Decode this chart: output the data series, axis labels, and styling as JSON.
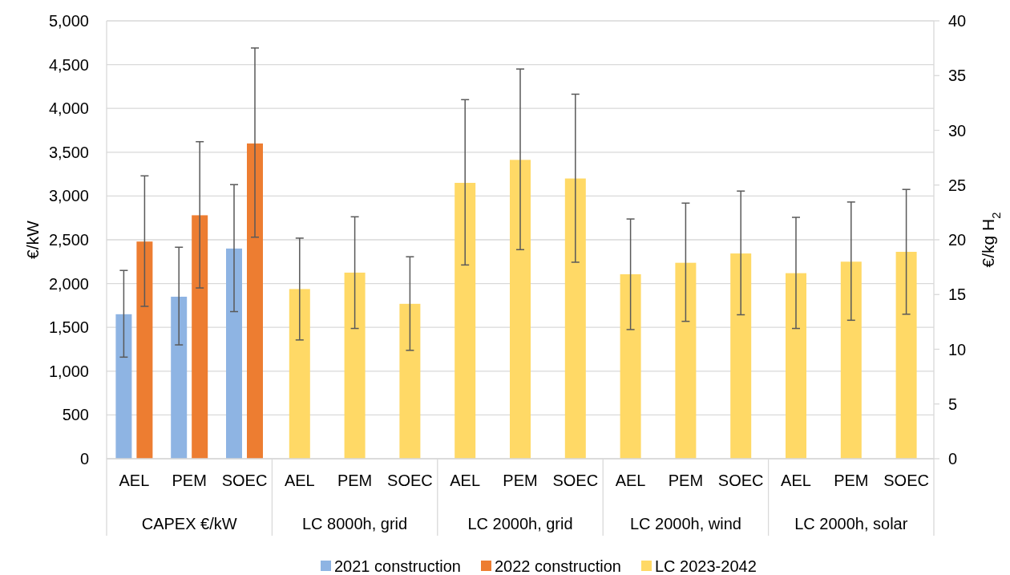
{
  "chart_data": {
    "type": "bar",
    "categories": [
      "AEL",
      "PEM",
      "SOEC",
      "AEL",
      "PEM",
      "SOEC",
      "AEL",
      "PEM",
      "SOEC",
      "AEL",
      "PEM",
      "SOEC",
      "AEL",
      "PEM",
      "SOEC"
    ],
    "annotations": [
      "CAPEX €/kW",
      "LC 8000h, grid",
      "LC 2000h, grid",
      "LC 2000h, wind",
      "LC 2000h, solar"
    ],
    "ylabel": "€/kW",
    "y2label": "€/kg H$_{2}$",
    "ylim": [
      0,
      5000
    ],
    "yticks": [
      {
        "value": 0,
        "label": "0"
      },
      {
        "value": 500,
        "label": "500"
      },
      {
        "value": 1000,
        "label": "1,000"
      },
      {
        "value": 1500,
        "label": "1,500"
      },
      {
        "value": 2000,
        "label": "2,000"
      },
      {
        "value": 2500,
        "label": "2,500"
      },
      {
        "value": 3000,
        "label": "3,000"
      },
      {
        "value": 3500,
        "label": "3,500"
      },
      {
        "value": 4000,
        "label": "4,000"
      },
      {
        "value": 4500,
        "label": "4,500"
      },
      {
        "value": 5000,
        "label": "5,000"
      }
    ],
    "y2lim": [
      0,
      40
    ],
    "y2ticks": [
      0,
      5,
      10,
      15,
      20,
      25,
      30,
      35,
      40
    ],
    "grid": "y",
    "legend": "bottom",
    "series": [
      {
        "name": "2021 construction",
        "color": "#8eb4e3",
        "values": [
          1650,
          1850,
          2400,
          null,
          null,
          null,
          null,
          null,
          null,
          null,
          null,
          null,
          null,
          null,
          null
        ],
        "errors": [
          [
            1160,
            2150
          ],
          [
            1300,
            2415
          ],
          [
            1680,
            3130
          ],
          null,
          null,
          null,
          null,
          null,
          null,
          null,
          null,
          null,
          null,
          null,
          null
        ]
      },
      {
        "name": "2022 construction",
        "color": "#ed7d31",
        "values": [
          2480,
          2780,
          3600,
          null,
          null,
          null,
          null,
          null,
          null,
          null,
          null,
          null,
          null,
          null,
          null
        ],
        "errors": [
          [
            1740,
            3230
          ],
          [
            1950,
            3620
          ],
          [
            2530,
            4690
          ],
          null,
          null,
          null,
          null,
          null,
          null,
          null,
          null,
          null,
          null,
          null,
          null
        ]
      },
      {
        "name": "LC 2023-2042",
        "color": "#ffd966",
        "axis": "y2",
        "values": [
          null,
          null,
          null,
          15.5,
          17,
          14.15,
          25.2,
          27.3,
          25.6,
          16.85,
          17.9,
          18.75,
          16.95,
          18,
          18.9
        ],
        "errors": [
          null,
          null,
          null,
          [
            10.85,
            20.15
          ],
          [
            11.9,
            22.1
          ],
          [
            9.9,
            18.45
          ],
          [
            17.7,
            32.8
          ],
          [
            19.1,
            35.6
          ],
          [
            17.95,
            33.3
          ],
          [
            11.8,
            21.9
          ],
          [
            12.55,
            23.35
          ],
          [
            13.15,
            24.45
          ],
          [
            11.9,
            22.05
          ],
          [
            12.65,
            23.45
          ],
          [
            13.2,
            24.6
          ]
        ]
      }
    ]
  }
}
